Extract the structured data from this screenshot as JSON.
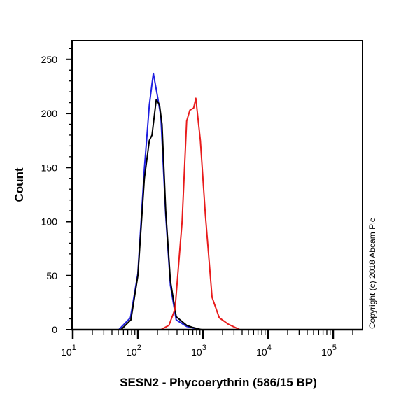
{
  "chart_data": {
    "type": "line",
    "title": "",
    "xlabel": "SESN2 - Phycoerythrin (586/15 BP)",
    "ylabel": "Count",
    "x_scale": "log",
    "xlim": [
      10,
      280000
    ],
    "ylim": [
      0,
      268
    ],
    "grid": false,
    "y_ticks": [
      "0",
      "50",
      "100",
      "150",
      "200",
      "250"
    ],
    "x_ticks": [
      {
        "base": "10",
        "exp": "1"
      },
      {
        "base": "10",
        "exp": "2"
      },
      {
        "base": "10",
        "exp": "3"
      },
      {
        "base": "10",
        "exp": "4"
      },
      {
        "base": "10",
        "exp": "5"
      }
    ],
    "annotation": "Copyright (c) 2018 Abcam Plc",
    "series": [
      {
        "color": "#1f1fe0",
        "points": [
          [
            10,
            0
          ],
          [
            51,
            0
          ],
          [
            77,
            11
          ],
          [
            100,
            52
          ],
          [
            126,
            149
          ],
          [
            150,
            208
          ],
          [
            173,
            237
          ],
          [
            200,
            216
          ],
          [
            226,
            197
          ],
          [
            268,
            106
          ],
          [
            316,
            41
          ],
          [
            388,
            9
          ],
          [
            562,
            3
          ],
          [
            910,
            0
          ],
          [
            280000,
            0
          ]
        ]
      },
      {
        "color": "#000000",
        "points": [
          [
            10,
            0
          ],
          [
            55,
            0
          ],
          [
            78,
            9
          ],
          [
            100,
            50
          ],
          [
            126,
            140
          ],
          [
            150,
            175
          ],
          [
            165,
            180
          ],
          [
            192,
            213
          ],
          [
            215,
            208
          ],
          [
            235,
            190
          ],
          [
            268,
            110
          ],
          [
            316,
            45
          ],
          [
            388,
            12
          ],
          [
            562,
            4
          ],
          [
            700,
            2
          ],
          [
            950,
            0
          ]
        ]
      },
      {
        "color": "#e81c1c",
        "points": [
          [
            10,
            0
          ],
          [
            226,
            0
          ],
          [
            300,
            4
          ],
          [
            372,
            19
          ],
          [
            478,
            100
          ],
          [
            562,
            193
          ],
          [
            630,
            203
          ],
          [
            720,
            205
          ],
          [
            776,
            214
          ],
          [
            912,
            175
          ],
          [
            1090,
            106
          ],
          [
            1380,
            30
          ],
          [
            1780,
            11
          ],
          [
            2460,
            5
          ],
          [
            3700,
            0
          ],
          [
            280000,
            0
          ]
        ]
      }
    ]
  }
}
